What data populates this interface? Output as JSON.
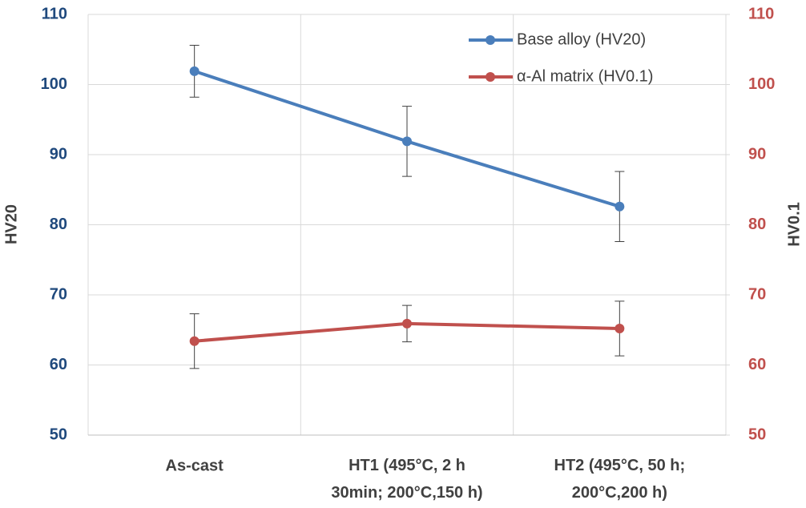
{
  "chart_data": {
    "type": "line",
    "categories": [
      "As-cast",
      "HT1 (495°C, 2 h\n30min; 200°C,150 h)",
      "HT2 (495°C, 50 h;\n200°C,200 h)"
    ],
    "series": [
      {
        "name": "Base alloy (HV20)",
        "color": "#4a7ebb",
        "values": [
          101.9,
          91.9,
          82.6
        ],
        "errors": [
          3.7,
          5,
          5
        ]
      },
      {
        "name": "α-Al matrix (HV0.1)",
        "color": "#c0504d",
        "axis": "y2",
        "values": [
          63.4,
          65.9,
          65.2
        ],
        "errors": [
          3.9,
          2.6,
          3.9
        ]
      }
    ],
    "ylabel": "HV20",
    "y2label": "HV0.1",
    "ylim": [
      50,
      110
    ],
    "yticks": [
      50,
      60,
      70,
      80,
      90,
      100,
      110
    ],
    "y2lim": [
      50,
      110
    ],
    "y2ticks": [
      50,
      60,
      70,
      80,
      90,
      100,
      110
    ],
    "grid": true,
    "legend": "top-right"
  }
}
